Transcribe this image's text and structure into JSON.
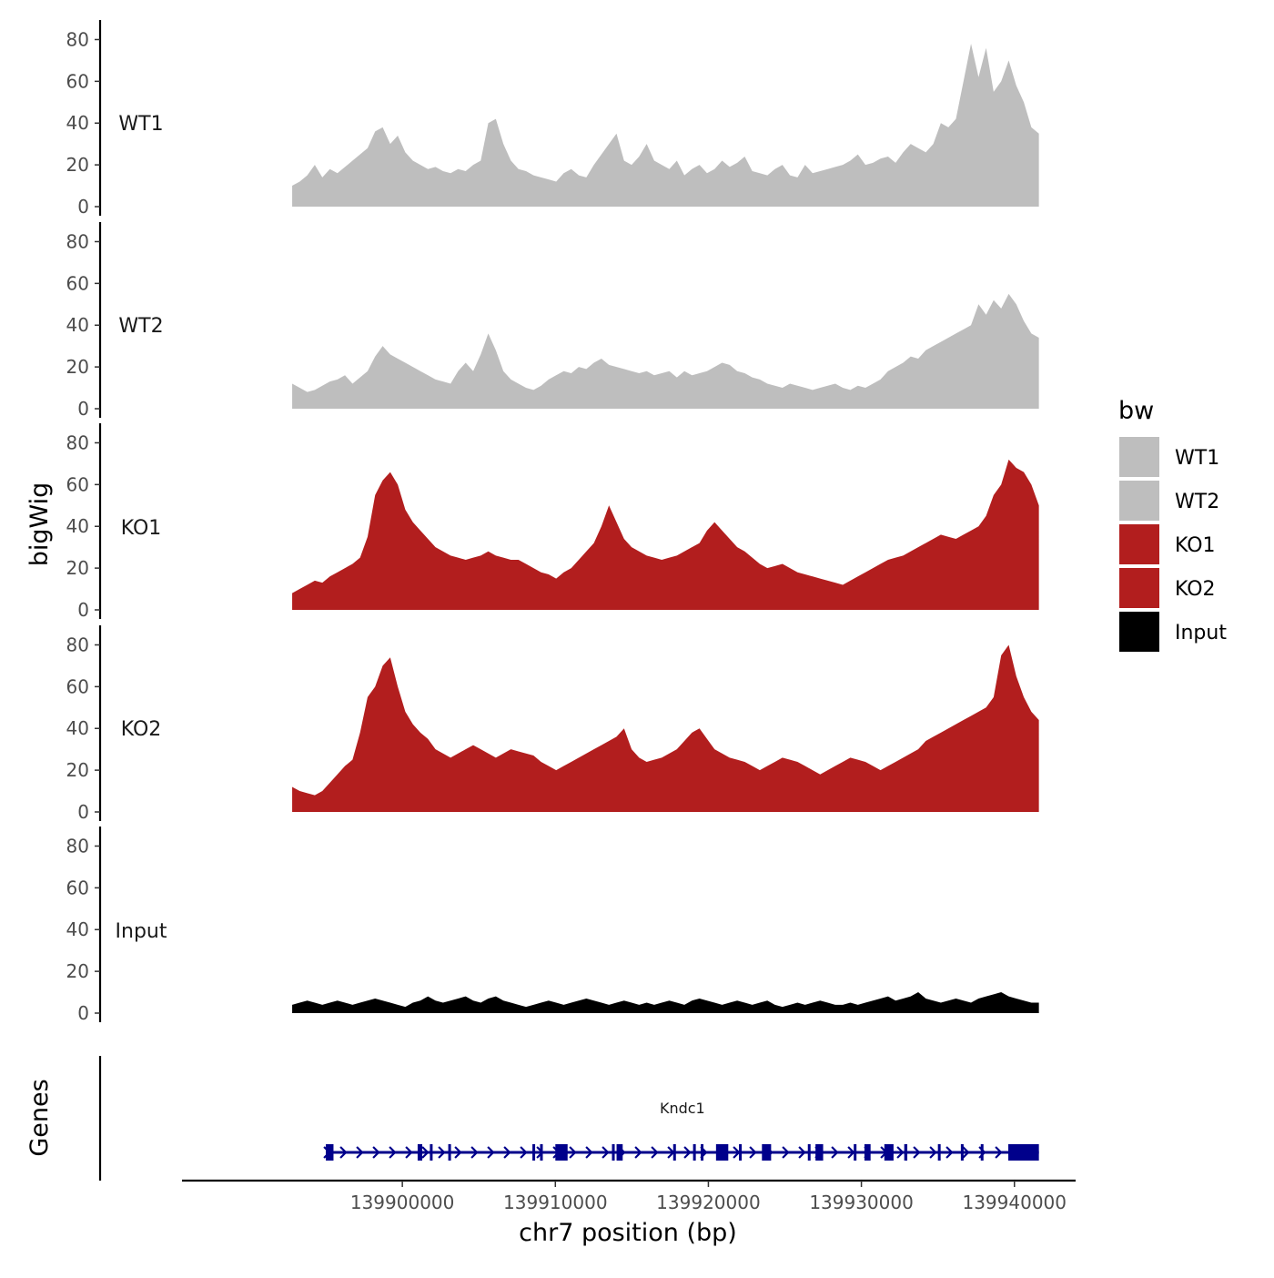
{
  "chart_data": {
    "type": "area",
    "title": "",
    "xlabel": "chr7 position (bp)",
    "ylabel": "bigWig",
    "gene_panel_label": "Genes",
    "xlim": [
      139885600,
      139944000
    ],
    "data_xrange": [
      139892800,
      139941600
    ],
    "ylim": [
      0,
      85
    ],
    "y_ticks": [
      0,
      20,
      40,
      60,
      80
    ],
    "x_ticks": [
      139900000,
      139910000,
      139920000,
      139930000,
      139940000
    ],
    "x_tick_labels": [
      "139900000",
      "139910000",
      "139920000",
      "139930000",
      "139940000"
    ],
    "legend": {
      "title": "bw",
      "position": "right",
      "entries": [
        {
          "label": "WT1",
          "color": "#bebebe"
        },
        {
          "label": "WT2",
          "color": "#bebebe"
        },
        {
          "label": "KO1",
          "color": "#b21e1e"
        },
        {
          "label": "KO2",
          "color": "#b21e1e"
        },
        {
          "label": "Input",
          "color": "#000000"
        }
      ]
    },
    "series": [
      {
        "name": "WT1",
        "color": "#bebebe",
        "values": [
          10,
          12,
          15,
          20,
          14,
          18,
          16,
          19,
          22,
          25,
          28,
          36,
          38,
          30,
          34,
          26,
          22,
          20,
          18,
          19,
          17,
          16,
          18,
          17,
          20,
          22,
          40,
          42,
          30,
          22,
          18,
          17,
          15,
          14,
          13,
          12,
          16,
          18,
          15,
          14,
          20,
          25,
          30,
          35,
          22,
          20,
          24,
          30,
          22,
          20,
          18,
          22,
          15,
          18,
          20,
          16,
          18,
          22,
          19,
          21,
          24,
          17,
          16,
          15,
          18,
          20,
          15,
          14,
          20,
          16,
          17,
          18,
          19,
          20,
          22,
          25,
          20,
          21,
          23,
          24,
          21,
          26,
          30,
          28,
          26,
          30,
          40,
          38,
          42,
          60,
          78,
          62,
          76,
          55,
          60,
          70,
          58,
          50,
          38,
          35
        ]
      },
      {
        "name": "WT2",
        "color": "#bebebe",
        "values": [
          12,
          10,
          8,
          9,
          11,
          13,
          14,
          16,
          12,
          15,
          18,
          25,
          30,
          26,
          24,
          22,
          20,
          18,
          16,
          14,
          13,
          12,
          18,
          22,
          18,
          26,
          36,
          28,
          18,
          14,
          12,
          10,
          9,
          11,
          14,
          16,
          18,
          17,
          20,
          19,
          22,
          24,
          21,
          20,
          19,
          18,
          17,
          18,
          16,
          17,
          18,
          15,
          18,
          16,
          17,
          18,
          20,
          22,
          21,
          18,
          17,
          15,
          14,
          12,
          11,
          10,
          12,
          11,
          10,
          9,
          10,
          11,
          12,
          10,
          9,
          11,
          10,
          12,
          14,
          18,
          20,
          22,
          25,
          24,
          28,
          30,
          32,
          34,
          36,
          38,
          40,
          50,
          45,
          52,
          48,
          55,
          50,
          42,
          36,
          34
        ]
      },
      {
        "name": "KO1",
        "color": "#b21e1e",
        "values": [
          8,
          10,
          12,
          14,
          13,
          16,
          18,
          20,
          22,
          25,
          35,
          55,
          62,
          66,
          60,
          48,
          42,
          38,
          34,
          30,
          28,
          26,
          25,
          24,
          25,
          26,
          28,
          26,
          25,
          24,
          24,
          22,
          20,
          18,
          17,
          15,
          18,
          20,
          24,
          28,
          32,
          40,
          50,
          42,
          34,
          30,
          28,
          26,
          25,
          24,
          25,
          26,
          28,
          30,
          32,
          38,
          42,
          38,
          34,
          30,
          28,
          25,
          22,
          20,
          21,
          22,
          20,
          18,
          17,
          16,
          15,
          14,
          13,
          12,
          14,
          16,
          18,
          20,
          22,
          24,
          25,
          26,
          28,
          30,
          32,
          34,
          36,
          35,
          34,
          36,
          38,
          40,
          45,
          55,
          60,
          72,
          68,
          66,
          60,
          50
        ]
      },
      {
        "name": "KO2",
        "color": "#b21e1e",
        "values": [
          12,
          10,
          9,
          8,
          10,
          14,
          18,
          22,
          25,
          38,
          55,
          60,
          70,
          74,
          60,
          48,
          42,
          38,
          35,
          30,
          28,
          26,
          28,
          30,
          32,
          30,
          28,
          26,
          28,
          30,
          29,
          28,
          27,
          24,
          22,
          20,
          22,
          24,
          26,
          28,
          30,
          32,
          34,
          36,
          40,
          30,
          26,
          24,
          25,
          26,
          28,
          30,
          34,
          38,
          40,
          35,
          30,
          28,
          26,
          25,
          24,
          22,
          20,
          22,
          24,
          26,
          25,
          24,
          22,
          20,
          18,
          20,
          22,
          24,
          26,
          25,
          24,
          22,
          20,
          22,
          24,
          26,
          28,
          30,
          34,
          36,
          38,
          40,
          42,
          44,
          46,
          48,
          50,
          55,
          75,
          80,
          65,
          55,
          48,
          44
        ]
      },
      {
        "name": "Input",
        "color": "#000000",
        "values": [
          4,
          5,
          6,
          5,
          4,
          5,
          6,
          5,
          4,
          5,
          6,
          7,
          6,
          5,
          4,
          3,
          5,
          6,
          8,
          6,
          5,
          6,
          7,
          8,
          6,
          5,
          7,
          8,
          6,
          5,
          4,
          3,
          4,
          5,
          6,
          5,
          4,
          5,
          6,
          7,
          6,
          5,
          4,
          5,
          6,
          5,
          4,
          5,
          4,
          5,
          6,
          5,
          4,
          6,
          7,
          6,
          5,
          4,
          5,
          6,
          5,
          4,
          5,
          6,
          4,
          3,
          4,
          5,
          4,
          5,
          6,
          5,
          4,
          4,
          5,
          4,
          5,
          6,
          7,
          8,
          6,
          7,
          8,
          10,
          7,
          6,
          5,
          6,
          7,
          6,
          5,
          7,
          8,
          9,
          10,
          8,
          7,
          6,
          5,
          5
        ]
      }
    ],
    "gene": {
      "name": "Kndc1",
      "color": "#00008b",
      "strand": "+",
      "start": 139895000,
      "end": 139941600,
      "exons": [
        [
          139895000,
          139895500
        ],
        [
          139901000,
          139901300
        ],
        [
          139901800,
          139901900
        ],
        [
          139903000,
          139903100
        ],
        [
          139908500,
          139908600
        ],
        [
          139909000,
          139909100
        ],
        [
          139910000,
          139910800
        ],
        [
          139913700,
          139913800
        ],
        [
          139914000,
          139914400
        ],
        [
          139917700,
          139917800
        ],
        [
          139919000,
          139919100
        ],
        [
          139919500,
          139919600
        ],
        [
          139920500,
          139921300
        ],
        [
          139922000,
          139922100
        ],
        [
          139923500,
          139924100
        ],
        [
          139926500,
          139926600
        ],
        [
          139927000,
          139927500
        ],
        [
          139929500,
          139929600
        ],
        [
          139930200,
          139930600
        ],
        [
          139931500,
          139932100
        ],
        [
          139932800,
          139933000
        ],
        [
          139935000,
          139935100
        ],
        [
          139936500,
          139936600
        ],
        [
          139937800,
          139937900
        ],
        [
          139939600,
          139941600
        ]
      ]
    }
  }
}
